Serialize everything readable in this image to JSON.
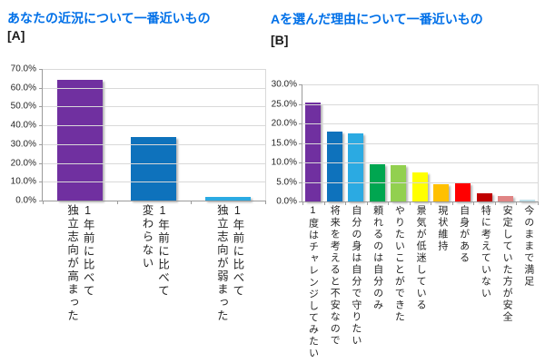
{
  "styles": {
    "title_color": "#0070E8",
    "tag_color": "#1A1A1A",
    "axis_text_color": "#262626",
    "gridline_color": "#D9D9D9",
    "axis_line_color": "#9B9B9B",
    "background": "#FFFFFF"
  },
  "chart_data": [
    {
      "type": "bar",
      "title": "あなたの近況について一番近いもの",
      "panel_tag": "[A]",
      "categories": [
        "1年前に比べて\n独立志向が高まった",
        "1年前に比べて\n変わらない",
        "1年前に比べて\n独立志向が弱まった"
      ],
      "values": [
        64.0,
        34.0,
        2.0
      ],
      "bar_colors": [
        "#7030A0",
        "#0E72BC",
        "#2BAAE2"
      ],
      "xlabel": "",
      "ylabel": "",
      "ylim": [
        0,
        70
      ],
      "ytick_step": 10,
      "ytick_labels": [
        "70.0%",
        "60.0%",
        "50.0%",
        "40.0%",
        "30.0%",
        "20.0%",
        "10.0%",
        "0.0%"
      ],
      "grid": true,
      "legend": "none"
    },
    {
      "type": "bar",
      "title": "Aを選んだ理由について一番近いもの",
      "panel_tag": "[B]",
      "categories": [
        "1度はチャレンジしてみたい",
        "将来を考えると不安なので",
        "自分の身は自分で守りたい",
        "頼れるのは自分のみ",
        "やりたいことができた",
        "景気が低迷している",
        "現状維持",
        "自身がある",
        "特に考えていない",
        "安定していた方が安全",
        "今のままで満足"
      ],
      "values": [
        25.4,
        17.9,
        17.4,
        9.5,
        9.4,
        7.4,
        4.4,
        4.6,
        2.1,
        1.5,
        0.4
      ],
      "bar_colors": [
        "#7030A0",
        "#0E72BC",
        "#2BAAE2",
        "#00A650",
        "#92D04F",
        "#FFFF00",
        "#FFC000",
        "#FF0000",
        "#C00000",
        "#E08484",
        "#BFDFE8"
      ],
      "xlabel": "",
      "ylabel": "",
      "ylim": [
        0,
        30
      ],
      "ytick_step": 5,
      "ytick_labels": [
        "30.0%",
        "25.0%",
        "20.0%",
        "15.0%",
        "10.0%",
        "5.0%",
        "0.0%"
      ],
      "grid": true,
      "legend": "none"
    }
  ]
}
